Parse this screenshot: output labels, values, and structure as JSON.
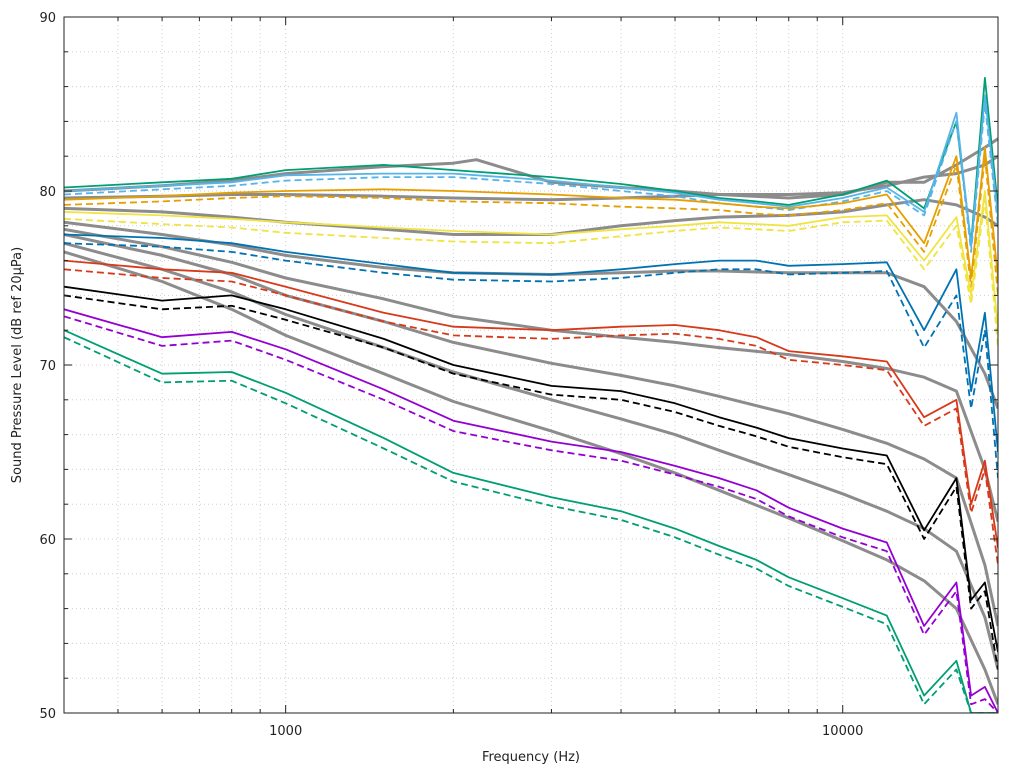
{
  "chart_data": {
    "type": "line",
    "title": "",
    "xlabel": "Frequency (Hz)",
    "ylabel": "Sound Pressure Level (dB ref 20µPa)",
    "xscale": "log",
    "xlim": [
      400,
      19000
    ],
    "ylim": [
      50,
      90
    ],
    "xticks": [
      1000,
      10000
    ],
    "xtick_labels": [
      "1000",
      "10000"
    ],
    "yticks": [
      50,
      60,
      70,
      80,
      90
    ],
    "ytick_labels": [
      "50",
      "60",
      "70",
      "80",
      "90"
    ],
    "grid": true,
    "legend": "none",
    "series": [
      {
        "name": "green-solid",
        "color": "#009e73",
        "dash": "solid",
        "x": [
          400,
          600,
          800,
          1000,
          1500,
          2000,
          3000,
          4000,
          5000,
          6000,
          7000,
          8000,
          10000,
          12000,
          14000,
          16000,
          17000,
          18000,
          19000
        ],
        "y": [
          80.2,
          80.5,
          80.7,
          81.2,
          81.5,
          81.2,
          80.8,
          80.4,
          80.0,
          79.6,
          79.4,
          79.2,
          79.8,
          80.6,
          79.0,
          84.0,
          77.0,
          86.5,
          79.0
        ]
      },
      {
        "name": "lightblue-solid",
        "color": "#56b4e9",
        "dash": "solid",
        "x": [
          400,
          600,
          800,
          1000,
          1500,
          2000,
          3000,
          4000,
          5000,
          6000,
          7000,
          8000,
          10000,
          12000,
          14000,
          16000,
          17000,
          18000,
          19000
        ],
        "y": [
          80.0,
          80.3,
          80.5,
          80.9,
          81.0,
          81.0,
          80.6,
          80.2,
          79.9,
          79.5,
          79.3,
          79.1,
          79.6,
          80.2,
          78.8,
          84.5,
          76.8,
          85.5,
          78.5
        ]
      },
      {
        "name": "lightblue-dashed",
        "color": "#56b4e9",
        "dash": "dashed",
        "x": [
          400,
          600,
          800,
          1000,
          1500,
          2000,
          3000,
          4000,
          5000,
          6000,
          7000,
          8000,
          10000,
          12000,
          14000,
          16000,
          17000,
          18000,
          19000
        ],
        "y": [
          79.8,
          80.1,
          80.3,
          80.6,
          80.8,
          80.8,
          80.4,
          80.0,
          79.7,
          79.3,
          79.1,
          78.9,
          79.4,
          80.0,
          78.6,
          84.0,
          76.5,
          85.0,
          78.0
        ]
      },
      {
        "name": "orange-solid",
        "color": "#e69f00",
        "dash": "solid",
        "x": [
          400,
          600,
          800,
          1000,
          1500,
          2000,
          3000,
          4000,
          5000,
          6000,
          7000,
          8000,
          10000,
          12000,
          14000,
          16000,
          17000,
          18000,
          19000
        ],
        "y": [
          79.5,
          79.7,
          79.9,
          80.0,
          80.1,
          80.0,
          79.8,
          79.6,
          79.5,
          79.3,
          79.1,
          79.0,
          79.3,
          79.8,
          77.0,
          82.0,
          75.0,
          82.5,
          75.0
        ]
      },
      {
        "name": "orange-dashed",
        "color": "#e69f00",
        "dash": "dashed",
        "x": [
          400,
          600,
          800,
          1000,
          1500,
          2000,
          3000,
          4000,
          5000,
          6000,
          7000,
          8000,
          10000,
          12000,
          14000,
          16000,
          17000,
          18000,
          19000
        ],
        "y": [
          79.2,
          79.4,
          79.6,
          79.7,
          79.6,
          79.4,
          79.3,
          79.1,
          79.0,
          78.9,
          78.7,
          78.6,
          78.9,
          79.3,
          76.5,
          81.5,
          74.5,
          82.0,
          74.0
        ]
      },
      {
        "name": "yellow-solid",
        "color": "#f0e442",
        "dash": "solid",
        "x": [
          400,
          600,
          800,
          1000,
          1500,
          2000,
          3000,
          4000,
          5000,
          6000,
          7000,
          8000,
          10000,
          12000,
          14000,
          16000,
          17000,
          18000,
          19000
        ],
        "y": [
          78.8,
          78.6,
          78.4,
          78.2,
          77.9,
          77.7,
          77.5,
          77.8,
          78.0,
          78.2,
          78.1,
          78.0,
          78.5,
          78.6,
          76.0,
          78.5,
          74.0,
          80.0,
          72.0
        ]
      },
      {
        "name": "yellow-dashed",
        "color": "#f0e442",
        "dash": "dashed",
        "x": [
          400,
          600,
          800,
          1000,
          1500,
          2000,
          3000,
          4000,
          5000,
          6000,
          7000,
          8000,
          10000,
          12000,
          14000,
          16000,
          17000,
          18000,
          19000
        ],
        "y": [
          78.4,
          78.1,
          77.9,
          77.6,
          77.3,
          77.1,
          77.0,
          77.4,
          77.7,
          77.9,
          77.8,
          77.7,
          78.2,
          78.3,
          75.5,
          78.0,
          73.5,
          79.5,
          71.0
        ]
      },
      {
        "name": "blue-solid",
        "color": "#0072b2",
        "dash": "solid",
        "x": [
          400,
          600,
          800,
          1000,
          1500,
          2000,
          3000,
          4000,
          5000,
          6000,
          7000,
          8000,
          10000,
          12000,
          14000,
          16000,
          17000,
          18000,
          19000
        ],
        "y": [
          77.5,
          77.3,
          77.0,
          76.5,
          75.8,
          75.3,
          75.2,
          75.5,
          75.8,
          76.0,
          76.0,
          75.7,
          75.8,
          75.9,
          72.0,
          75.5,
          68.5,
          73.0,
          65.0
        ]
      },
      {
        "name": "blue-dashed",
        "color": "#0072b2",
        "dash": "dashed",
        "x": [
          400,
          600,
          800,
          1000,
          1500,
          2000,
          3000,
          4000,
          5000,
          6000,
          7000,
          8000,
          10000,
          12000,
          14000,
          16000,
          17000,
          18000,
          19000
        ],
        "y": [
          77.0,
          76.8,
          76.5,
          76.0,
          75.3,
          74.9,
          74.8,
          75.0,
          75.3,
          75.5,
          75.5,
          75.2,
          75.3,
          75.4,
          71.0,
          74.0,
          67.5,
          72.0,
          63.5
        ]
      },
      {
        "name": "red-solid",
        "color": "#d73a1a",
        "dash": "solid",
        "x": [
          400,
          600,
          800,
          1000,
          1500,
          2000,
          3000,
          4000,
          5000,
          6000,
          7000,
          8000,
          10000,
          12000,
          14000,
          16000,
          17000,
          18000,
          19000
        ],
        "y": [
          76.0,
          75.5,
          75.3,
          74.5,
          73.0,
          72.2,
          72.0,
          72.2,
          72.3,
          72.0,
          71.6,
          70.8,
          70.5,
          70.2,
          67.0,
          68.0,
          62.0,
          64.5,
          59.5
        ]
      },
      {
        "name": "red-dashed",
        "color": "#d73a1a",
        "dash": "dashed",
        "x": [
          400,
          600,
          800,
          1000,
          1500,
          2000,
          3000,
          4000,
          5000,
          6000,
          7000,
          8000,
          10000,
          12000,
          14000,
          16000,
          17000,
          18000,
          19000
        ],
        "y": [
          75.5,
          75.0,
          74.8,
          74.0,
          72.5,
          71.7,
          71.5,
          71.7,
          71.8,
          71.5,
          71.1,
          70.3,
          70.0,
          69.7,
          66.5,
          67.5,
          61.5,
          64.0,
          58.5
        ]
      },
      {
        "name": "black-solid",
        "color": "#000000",
        "dash": "solid",
        "x": [
          400,
          600,
          800,
          1000,
          1500,
          2000,
          3000,
          4000,
          5000,
          6000,
          7000,
          8000,
          10000,
          12000,
          14000,
          16000,
          17000,
          18000,
          19000
        ],
        "y": [
          74.5,
          73.7,
          74.0,
          73.2,
          71.5,
          70.0,
          68.8,
          68.5,
          67.8,
          67.0,
          66.4,
          65.8,
          65.2,
          64.8,
          60.5,
          63.5,
          56.5,
          57.5,
          53.5
        ]
      },
      {
        "name": "black-dashed",
        "color": "#000000",
        "dash": "dashed",
        "x": [
          400,
          600,
          800,
          1000,
          1500,
          2000,
          3000,
          4000,
          5000,
          6000,
          7000,
          8000,
          10000,
          12000,
          14000,
          16000,
          17000,
          18000,
          19000
        ],
        "y": [
          74.0,
          73.2,
          73.4,
          72.6,
          71.0,
          69.5,
          68.3,
          68.0,
          67.3,
          66.5,
          65.9,
          65.3,
          64.7,
          64.3,
          60.0,
          63.0,
          56.0,
          57.0,
          52.5
        ]
      },
      {
        "name": "purple-solid",
        "color": "#9400d3",
        "dash": "solid",
        "x": [
          400,
          600,
          800,
          1000,
          1500,
          2000,
          3000,
          4000,
          5000,
          6000,
          7000,
          8000,
          10000,
          12000,
          14000,
          16000,
          17000,
          18000,
          19000
        ],
        "y": [
          73.2,
          71.6,
          71.9,
          70.9,
          68.6,
          66.8,
          65.6,
          65.0,
          64.2,
          63.5,
          62.8,
          61.8,
          60.6,
          59.8,
          55.0,
          57.5,
          51.0,
          51.5,
          50.0
        ]
      },
      {
        "name": "purple-dashed",
        "color": "#9400d3",
        "dash": "dashed",
        "x": [
          400,
          600,
          800,
          1000,
          1500,
          2000,
          3000,
          4000,
          5000,
          6000,
          7000,
          8000,
          10000,
          12000,
          14000,
          16000,
          17000,
          18000,
          19000
        ],
        "y": [
          72.8,
          71.1,
          71.4,
          70.3,
          68.0,
          66.2,
          65.1,
          64.5,
          63.7,
          63.0,
          62.3,
          61.3,
          60.1,
          59.3,
          54.5,
          57.0,
          50.5,
          50.8,
          50.0
        ]
      },
      {
        "name": "teal-solid",
        "color": "#009e73",
        "dash": "solid",
        "x": [
          400,
          600,
          800,
          1000,
          1500,
          2000,
          3000,
          4000,
          5000,
          6000,
          7000,
          8000,
          10000,
          12000,
          14000,
          16000,
          17000,
          18000,
          19000
        ],
        "y": [
          72.0,
          69.5,
          69.6,
          68.4,
          65.8,
          63.8,
          62.4,
          61.6,
          60.6,
          59.6,
          58.8,
          57.8,
          56.6,
          55.6,
          51.0,
          53.0,
          50.0,
          50.0,
          50.0
        ]
      },
      {
        "name": "teal-dashed",
        "color": "#009e73",
        "dash": "dashed",
        "x": [
          400,
          600,
          800,
          1000,
          1500,
          2000,
          3000,
          4000,
          5000,
          6000,
          7000,
          8000,
          10000,
          12000,
          14000,
          16000,
          17000,
          18000,
          19000
        ],
        "y": [
          71.6,
          69.0,
          69.1,
          67.8,
          65.2,
          63.3,
          61.9,
          61.1,
          60.1,
          59.1,
          58.3,
          57.3,
          56.1,
          55.1,
          50.5,
          52.5,
          50.0,
          50.0,
          50.0
        ]
      },
      {
        "name": "gray-1",
        "color": "#8c8c8c",
        "dash": "solid",
        "thick": true,
        "x": [
          400,
          600,
          800,
          1000,
          1500,
          2000,
          2200,
          3000,
          4000,
          5000,
          6000,
          8000,
          10000,
          12000,
          14000,
          16000,
          18000,
          19000
        ],
        "y": [
          80.0,
          80.3,
          80.6,
          81.0,
          81.4,
          81.6,
          81.8,
          80.5,
          80.2,
          80.0,
          79.8,
          79.6,
          79.8,
          80.5,
          80.5,
          81.5,
          82.5,
          83.0
        ]
      },
      {
        "name": "gray-2",
        "color": "#8c8c8c",
        "dash": "solid",
        "thick": true,
        "x": [
          400,
          600,
          800,
          1000,
          1500,
          2000,
          3000,
          4000,
          5000,
          6000,
          8000,
          10000,
          12000,
          14000,
          16000,
          18000,
          19000
        ],
        "y": [
          79.6,
          79.7,
          79.8,
          79.8,
          79.7,
          79.6,
          79.5,
          79.6,
          79.7,
          79.8,
          79.8,
          79.9,
          80.3,
          80.8,
          81.0,
          81.5,
          82.0
        ]
      },
      {
        "name": "gray-3",
        "color": "#8c8c8c",
        "dash": "solid",
        "thick": true,
        "x": [
          400,
          600,
          800,
          1000,
          1500,
          2000,
          3000,
          4000,
          5000,
          6000,
          8000,
          10000,
          12000,
          14000,
          16000,
          18000,
          19000
        ],
        "y": [
          79.0,
          78.8,
          78.5,
          78.2,
          77.8,
          77.5,
          77.5,
          78.0,
          78.3,
          78.5,
          78.6,
          78.8,
          79.2,
          79.5,
          79.2,
          78.5,
          78.0
        ]
      },
      {
        "name": "gray-4",
        "color": "#8c8c8c",
        "dash": "solid",
        "thick": true,
        "x": [
          400,
          600,
          800,
          1000,
          1500,
          2000,
          3000,
          4000,
          5000,
          6000,
          8000,
          10000,
          12000,
          14000,
          16000,
          18000,
          19000
        ],
        "y": [
          78.2,
          77.5,
          76.9,
          76.3,
          75.6,
          75.3,
          75.2,
          75.3,
          75.4,
          75.4,
          75.3,
          75.3,
          75.3,
          74.5,
          72.5,
          69.5,
          67.5
        ]
      },
      {
        "name": "gray-5",
        "color": "#8c8c8c",
        "dash": "solid",
        "thick": true,
        "x": [
          400,
          600,
          800,
          1000,
          1500,
          2000,
          3000,
          4000,
          5000,
          6000,
          8000,
          10000,
          12000,
          14000,
          16000,
          18000,
          19000
        ],
        "y": [
          77.8,
          76.8,
          75.9,
          75.0,
          73.8,
          72.8,
          72.0,
          71.6,
          71.3,
          71.0,
          70.6,
          70.2,
          69.8,
          69.3,
          68.5,
          64.0,
          61.0
        ]
      },
      {
        "name": "gray-6",
        "color": "#8c8c8c",
        "dash": "solid",
        "thick": true,
        "x": [
          400,
          600,
          800,
          1000,
          1500,
          2000,
          3000,
          4000,
          5000,
          6000,
          8000,
          10000,
          12000,
          14000,
          16000,
          18000,
          19000
        ],
        "y": [
          77.5,
          76.3,
          75.2,
          74.0,
          72.5,
          71.3,
          70.1,
          69.4,
          68.8,
          68.2,
          67.2,
          66.3,
          65.5,
          64.6,
          63.5,
          58.5,
          55.0
        ]
      },
      {
        "name": "gray-7",
        "color": "#8c8c8c",
        "dash": "solid",
        "thick": true,
        "x": [
          400,
          600,
          800,
          1000,
          1500,
          2000,
          3000,
          4000,
          5000,
          6000,
          8000,
          10000,
          12000,
          14000,
          16000,
          18000,
          19000
        ],
        "y": [
          77.0,
          75.5,
          74.2,
          72.9,
          71.0,
          69.6,
          68.0,
          66.9,
          66.0,
          65.1,
          63.7,
          62.6,
          61.6,
          60.6,
          59.3,
          55.5,
          52.5
        ]
      },
      {
        "name": "gray-8",
        "color": "#8c8c8c",
        "dash": "solid",
        "thick": true,
        "x": [
          400,
          600,
          800,
          1000,
          1500,
          2000,
          3000,
          4000,
          5000,
          6000,
          8000,
          10000,
          12000,
          14000,
          16000,
          18000,
          19000
        ],
        "y": [
          76.5,
          74.8,
          73.2,
          71.7,
          69.5,
          67.9,
          66.2,
          64.9,
          63.8,
          62.8,
          61.2,
          59.9,
          58.8,
          57.6,
          56.0,
          52.5,
          50.5
        ]
      }
    ]
  }
}
